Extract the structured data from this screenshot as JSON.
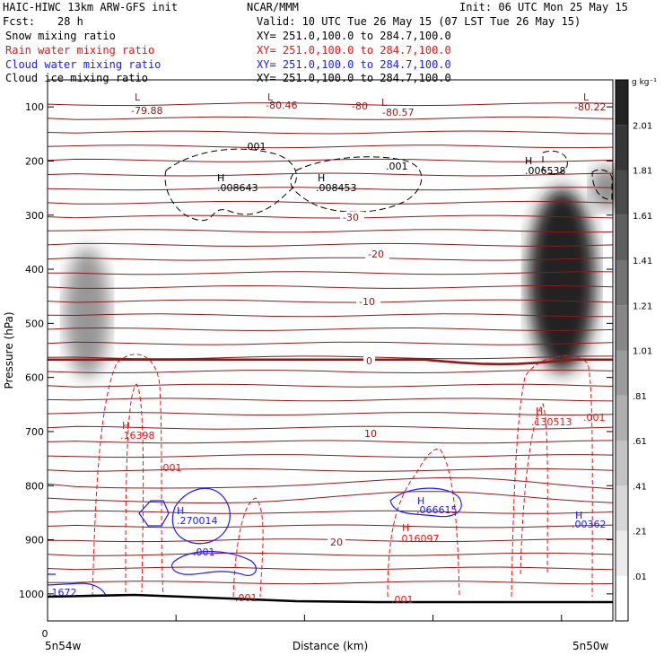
{
  "header": {
    "model": "HAIC-HIWC 13km ARW-GFS init",
    "org": "NCAR/MMM",
    "init": "Init: 06 UTC Mon 25 May 15",
    "fcst_label": "Fcst:",
    "fcst_value": "28 h",
    "valid": "Valid: 10 UTC Tue 26 May 15 (07 LST Tue 26 May 15)"
  },
  "fields": [
    {
      "name": "Snow mixing ratio",
      "xy": "XY= 251.0,100.0 to 284.7,100.0",
      "color": "#000000"
    },
    {
      "name": "Rain water mixing ratio",
      "xy": "XY= 251.0,100.0 to 284.7,100.0",
      "color": "#ee1111"
    },
    {
      "name": "Cloud water mixing ratio",
      "xy": "XY= 251.0,100.0 to 284.7,100.0",
      "color": "#1a1aff"
    },
    {
      "name": "Cloud ice mixing ratio",
      "xy": "XY= 251.0,100.0 to 284.7,100.0",
      "color": "#000000"
    }
  ],
  "chart_data": {
    "type": "cross-section",
    "ylabel": "Pressure (hPa)",
    "xlabel": "Distance (km)",
    "x_start_label": "5n54w",
    "x_end_label": "5n50w",
    "x_tick_labels": [
      "0"
    ],
    "ylim": [
      1050,
      50
    ],
    "y_ticks": [
      100,
      200,
      300,
      400,
      500,
      600,
      700,
      800,
      900,
      1000
    ],
    "colorbar": {
      "unit": "g kg⁻¹",
      "labels": [
        "2.01",
        "1.81",
        "1.61",
        "1.41",
        "1.21",
        "1.01",
        ".81",
        ".61",
        ".41",
        ".21",
        ".01"
      ],
      "min": 0.01,
      "max": 2.21,
      "step": 0.2
    },
    "temperature_contour_labels": [
      "-30",
      "-20",
      "-10",
      "0",
      "10",
      "20"
    ],
    "lows": [
      {
        "label": "L",
        "value": "-79.88"
      },
      {
        "label": "L",
        "value": "-80.46"
      },
      {
        "label": "L",
        "value": "-80.57"
      },
      {
        "label": "L",
        "value": "-80.22"
      },
      {
        "label": "",
        "value": "-80"
      }
    ],
    "ice_maxima": [
      {
        "label": "H",
        "value": ".008643"
      },
      {
        "label": "H",
        "value": ".008453"
      },
      {
        "label": "H",
        "value": ".006538"
      }
    ],
    "ice_contour_labels": [
      ".001",
      ".001"
    ],
    "rain_maxima": [
      {
        "label": "H",
        "value": ".16398"
      },
      {
        "label": "H",
        "value": ".130513"
      },
      {
        "label": "H",
        "value": ".016097"
      }
    ],
    "rain_contour_labels": [
      ".001",
      ".001",
      ".001",
      ".001"
    ],
    "cloud_maxima": [
      {
        "label": "H",
        "value": ".270014"
      },
      {
        "label": "H",
        "value": ".066615"
      },
      {
        "label": "H",
        "value": ".00362"
      }
    ],
    "cloud_contour_labels": [
      ".001",
      ".1672"
    ],
    "snow_shading": [
      {
        "x_frac": 0.07,
        "p_center": 480,
        "p_half": 120,
        "x_half_frac": 0.04,
        "max": 0.9
      },
      {
        "x_frac": 0.91,
        "p_center": 420,
        "p_half": 170,
        "x_half_frac": 0.06,
        "max": 1.9
      },
      {
        "x_frac": 0.99,
        "p_center": 250,
        "p_half": 40,
        "x_half_frac": 0.03,
        "max": 1.0
      }
    ],
    "colors": {
      "temperature": "#8b1a1a",
      "rain": "#ee1111",
      "cloud_water": "#1a1aff",
      "ice": "#000000",
      "ground": "#000000"
    }
  }
}
